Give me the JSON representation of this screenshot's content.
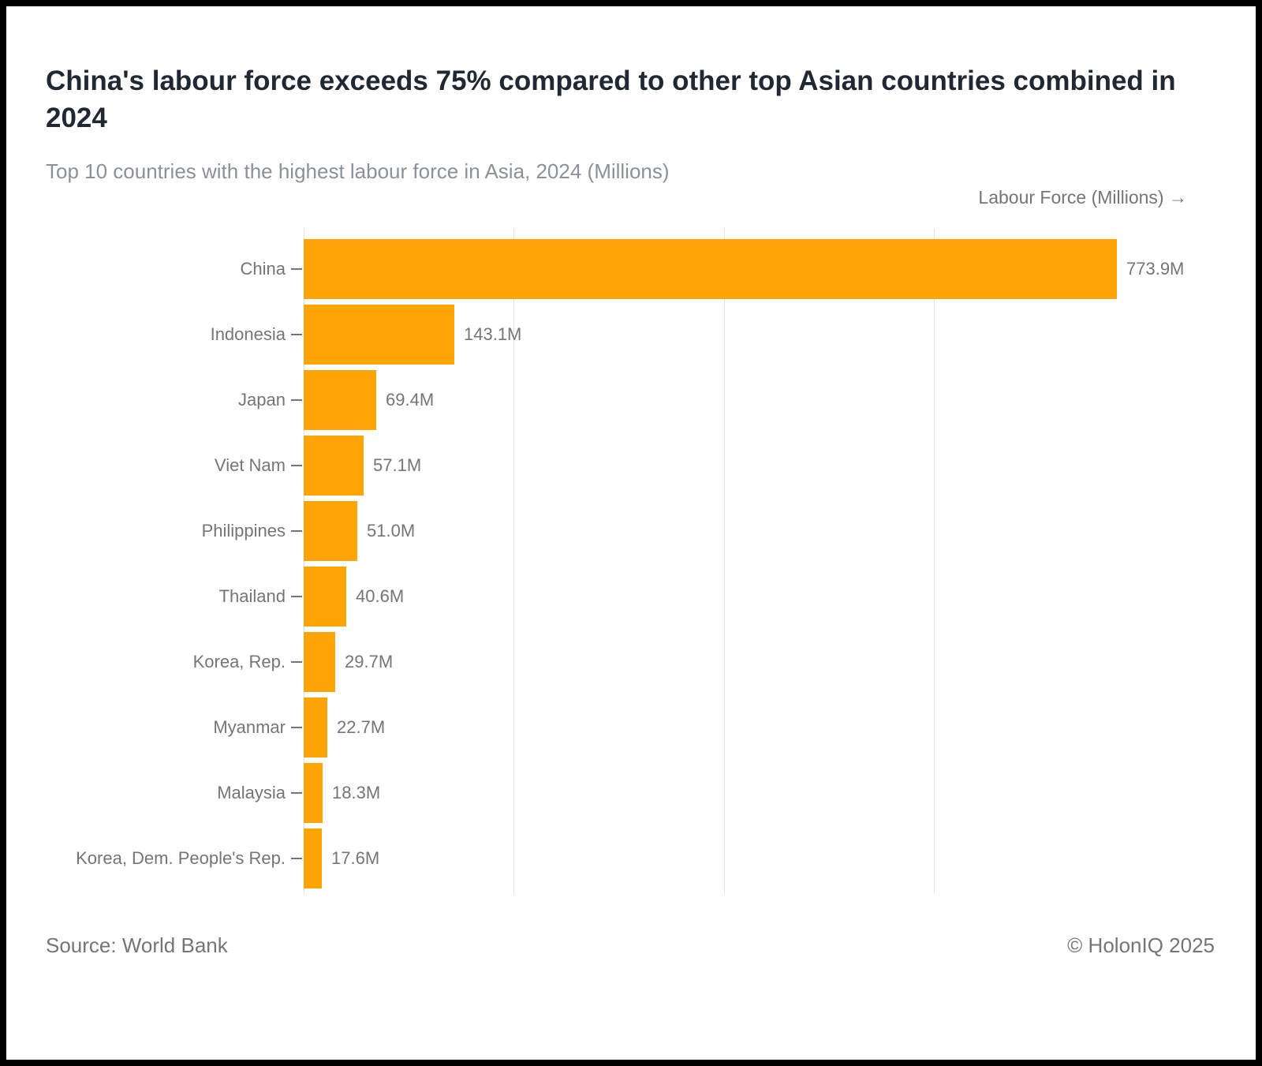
{
  "header": {
    "title": "China's labour force exceeds 75% compared to other top Asian countries combined in 2024",
    "subtitle": "Top 10 countries with the highest labour force in Asia, 2024 (Millions)"
  },
  "chart_data": {
    "type": "bar",
    "orientation": "horizontal",
    "title": "China's labour force exceeds 75% compared to other top Asian countries combined in 2024",
    "subtitle": "Top 10 countries with the highest labour force in Asia, 2024 (Millions)",
    "axis_title": "Labour Force (Millions) →",
    "categories": [
      "China",
      "Indonesia",
      "Japan",
      "Viet Nam",
      "Philippines",
      "Thailand",
      "Korea, Rep.",
      "Myanmar",
      "Malaysia",
      "Korea, Dem. People's Rep."
    ],
    "values": [
      773.9,
      143.1,
      69.4,
      57.1,
      51.0,
      40.6,
      29.7,
      22.7,
      18.3,
      17.6
    ],
    "value_labels": [
      "773.9M",
      "143.1M",
      "69.4M",
      "57.1M",
      "51.0M",
      "40.6M",
      "29.7M",
      "22.7M",
      "18.3M",
      "17.6M"
    ],
    "xlim": [
      0,
      840
    ],
    "gridlines_m": [
      0,
      200,
      400,
      600
    ],
    "grid": true,
    "legend": "none",
    "bar_color": "#FFA405",
    "label_color": "#757575",
    "grid_color": "#e3e3e3"
  },
  "footer": {
    "source": "Source: World Bank",
    "copyright": "© HolonIQ 2025"
  }
}
